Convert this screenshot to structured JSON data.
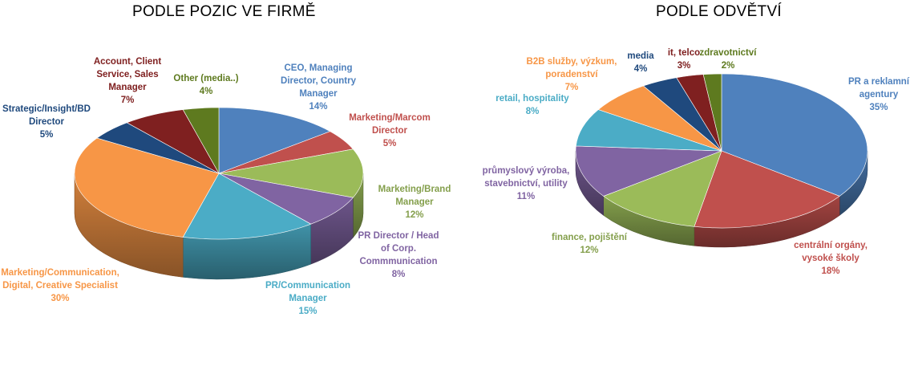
{
  "chart_data": [
    {
      "type": "pie",
      "title": "PODLE POZIC VE FIRMĚ",
      "slices": [
        {
          "lines": [
            "CEO, Managing",
            "Director, Country",
            "Manager"
          ],
          "pct_label": "14%",
          "value": 14,
          "color": "#4F81BD"
        },
        {
          "lines": [
            "Marketing/Marcom",
            "Director"
          ],
          "pct_label": "5%",
          "value": 5,
          "color": "#C0504D"
        },
        {
          "lines": [
            "Marketing/Brand",
            "Manager"
          ],
          "pct_label": "12%",
          "value": 12,
          "color": "#9BBB59"
        },
        {
          "lines": [
            "PR Director / Head",
            "of Corp.",
            "Commmunication"
          ],
          "pct_label": "8%",
          "value": 8,
          "color": "#8064A2"
        },
        {
          "lines": [
            "PR/Communication",
            "Manager"
          ],
          "pct_label": "15%",
          "value": 15,
          "color": "#4BACC6"
        },
        {
          "lines": [
            "Marketing/Communication,",
            "Digital,  Creative Specialist"
          ],
          "pct_label": "30%",
          "value": 30,
          "color": "#F79646"
        },
        {
          "lines": [
            "Strategic/Insight/BD",
            "Director"
          ],
          "pct_label": "5%",
          "value": 5,
          "color": "#1F497D"
        },
        {
          "lines": [
            "Account, Client",
            "Service, Sales",
            "Manager"
          ],
          "pct_label": "7%",
          "value": 7,
          "color": "#7F2020"
        },
        {
          "lines": [
            "Other (media..)"
          ],
          "pct_label": "4%",
          "value": 4,
          "color": "#5E7A1F"
        }
      ]
    },
    {
      "type": "pie",
      "title": "PODLE ODVĚTVÍ",
      "slices": [
        {
          "lines": [
            "PR a reklamní",
            "agentury"
          ],
          "pct_label": "35%",
          "value": 35,
          "color": "#4F81BD"
        },
        {
          "lines": [
            "centrální orgány,",
            "vysoké školy"
          ],
          "pct_label": "18%",
          "value": 18,
          "color": "#C0504D"
        },
        {
          "lines": [
            "finance,  pojištění"
          ],
          "pct_label": "12%",
          "value": 12,
          "color": "#9BBB59"
        },
        {
          "lines": [
            "průmyslový  výroba,",
            "stavebnictví,  utility"
          ],
          "pct_label": "11%",
          "value": 11,
          "color": "#8064A2"
        },
        {
          "lines": [
            "retail,  hospitality"
          ],
          "pct_label": "8%",
          "value": 8,
          "color": "#4BACC6"
        },
        {
          "lines": [
            "B2B  služby,  výzkum,",
            "poradenství"
          ],
          "pct_label": "7%",
          "value": 7,
          "color": "#F79646"
        },
        {
          "lines": [
            "media"
          ],
          "pct_label": "4%",
          "value": 4,
          "color": "#1F497D"
        },
        {
          "lines": [
            "it,  telco"
          ],
          "pct_label": "3%",
          "value": 3,
          "color": "#7F2020"
        },
        {
          "lines": [
            "zdravotnictví"
          ],
          "pct_label": "2%",
          "value": 2,
          "color": "#5E7A1F"
        }
      ]
    }
  ]
}
